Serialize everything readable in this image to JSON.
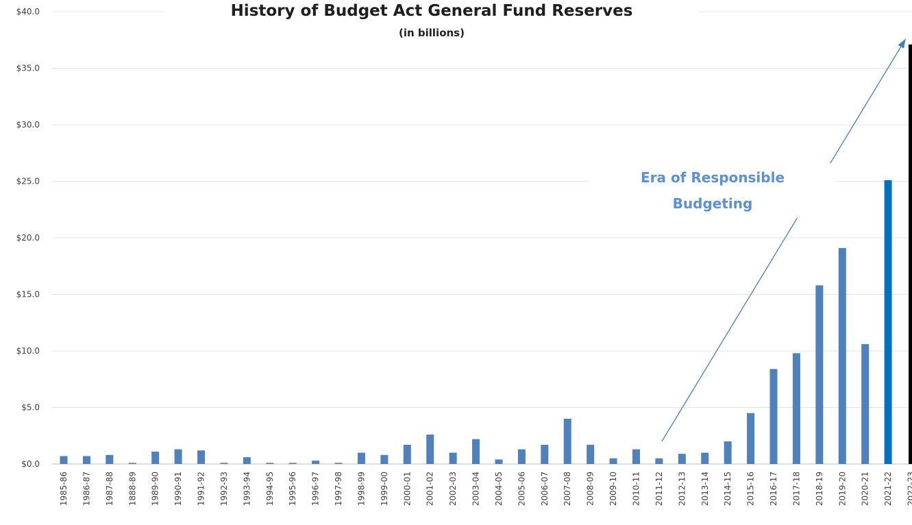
{
  "chart_data": {
    "type": "bar",
    "title": "History of Budget Act General Fund Reserves",
    "subtitle": "(in billions)",
    "xlabel": "",
    "ylabel": "",
    "ylim": [
      0,
      40
    ],
    "y_ticks": [
      "$0.0",
      "$5.0",
      "$10.0",
      "$15.0",
      "$20.0",
      "$25.0",
      "$30.0",
      "$35.0",
      "$40.0"
    ],
    "grid": true,
    "categories": [
      "1985-86",
      "1986-87",
      "1987-88",
      "1888-89",
      "1989-90",
      "1990-91",
      "1991-92",
      "1992-93",
      "1993-94",
      "1994-95",
      "1995-96",
      "1996-97",
      "1997-98",
      "1998-99",
      "1999-00",
      "2000-01",
      "2001-02",
      "2002-03",
      "2003-04",
      "2004-05",
      "2005-06",
      "2006-07",
      "2007-08",
      "2008-09",
      "2009-10",
      "2010-11",
      "2011-12",
      "2012-13",
      "2013-14",
      "2014-15",
      "2015-16",
      "2016-17",
      "2017-18",
      "2018-19",
      "2019-20",
      "2020-21",
      "2021-22",
      "2022-23"
    ],
    "values": [
      0.7,
      0.7,
      0.8,
      0.1,
      1.1,
      1.3,
      1.2,
      0.1,
      0.6,
      0.1,
      0.1,
      0.3,
      0.1,
      1.0,
      0.8,
      1.7,
      2.6,
      1.0,
      2.2,
      0.4,
      1.3,
      1.7,
      4.0,
      1.7,
      0.5,
      1.3,
      0.5,
      0.9,
      1.0,
      2.0,
      4.5,
      8.4,
      9.8,
      15.8,
      19.1,
      10.6,
      25.1,
      37.1
    ],
    "bar_colors": {
      "default": "#4f81bd",
      "2021-22": "#0070c0",
      "2022-23": "#000000"
    },
    "annotation": {
      "text_lines": [
        "Era of Responsible",
        "Budgeting"
      ],
      "color": "#5b8fd6",
      "arrow_from": {
        "category": "2011-12",
        "value": 2.0
      },
      "arrow_to": {
        "category": "2022-23",
        "value": 38.0
      }
    }
  }
}
